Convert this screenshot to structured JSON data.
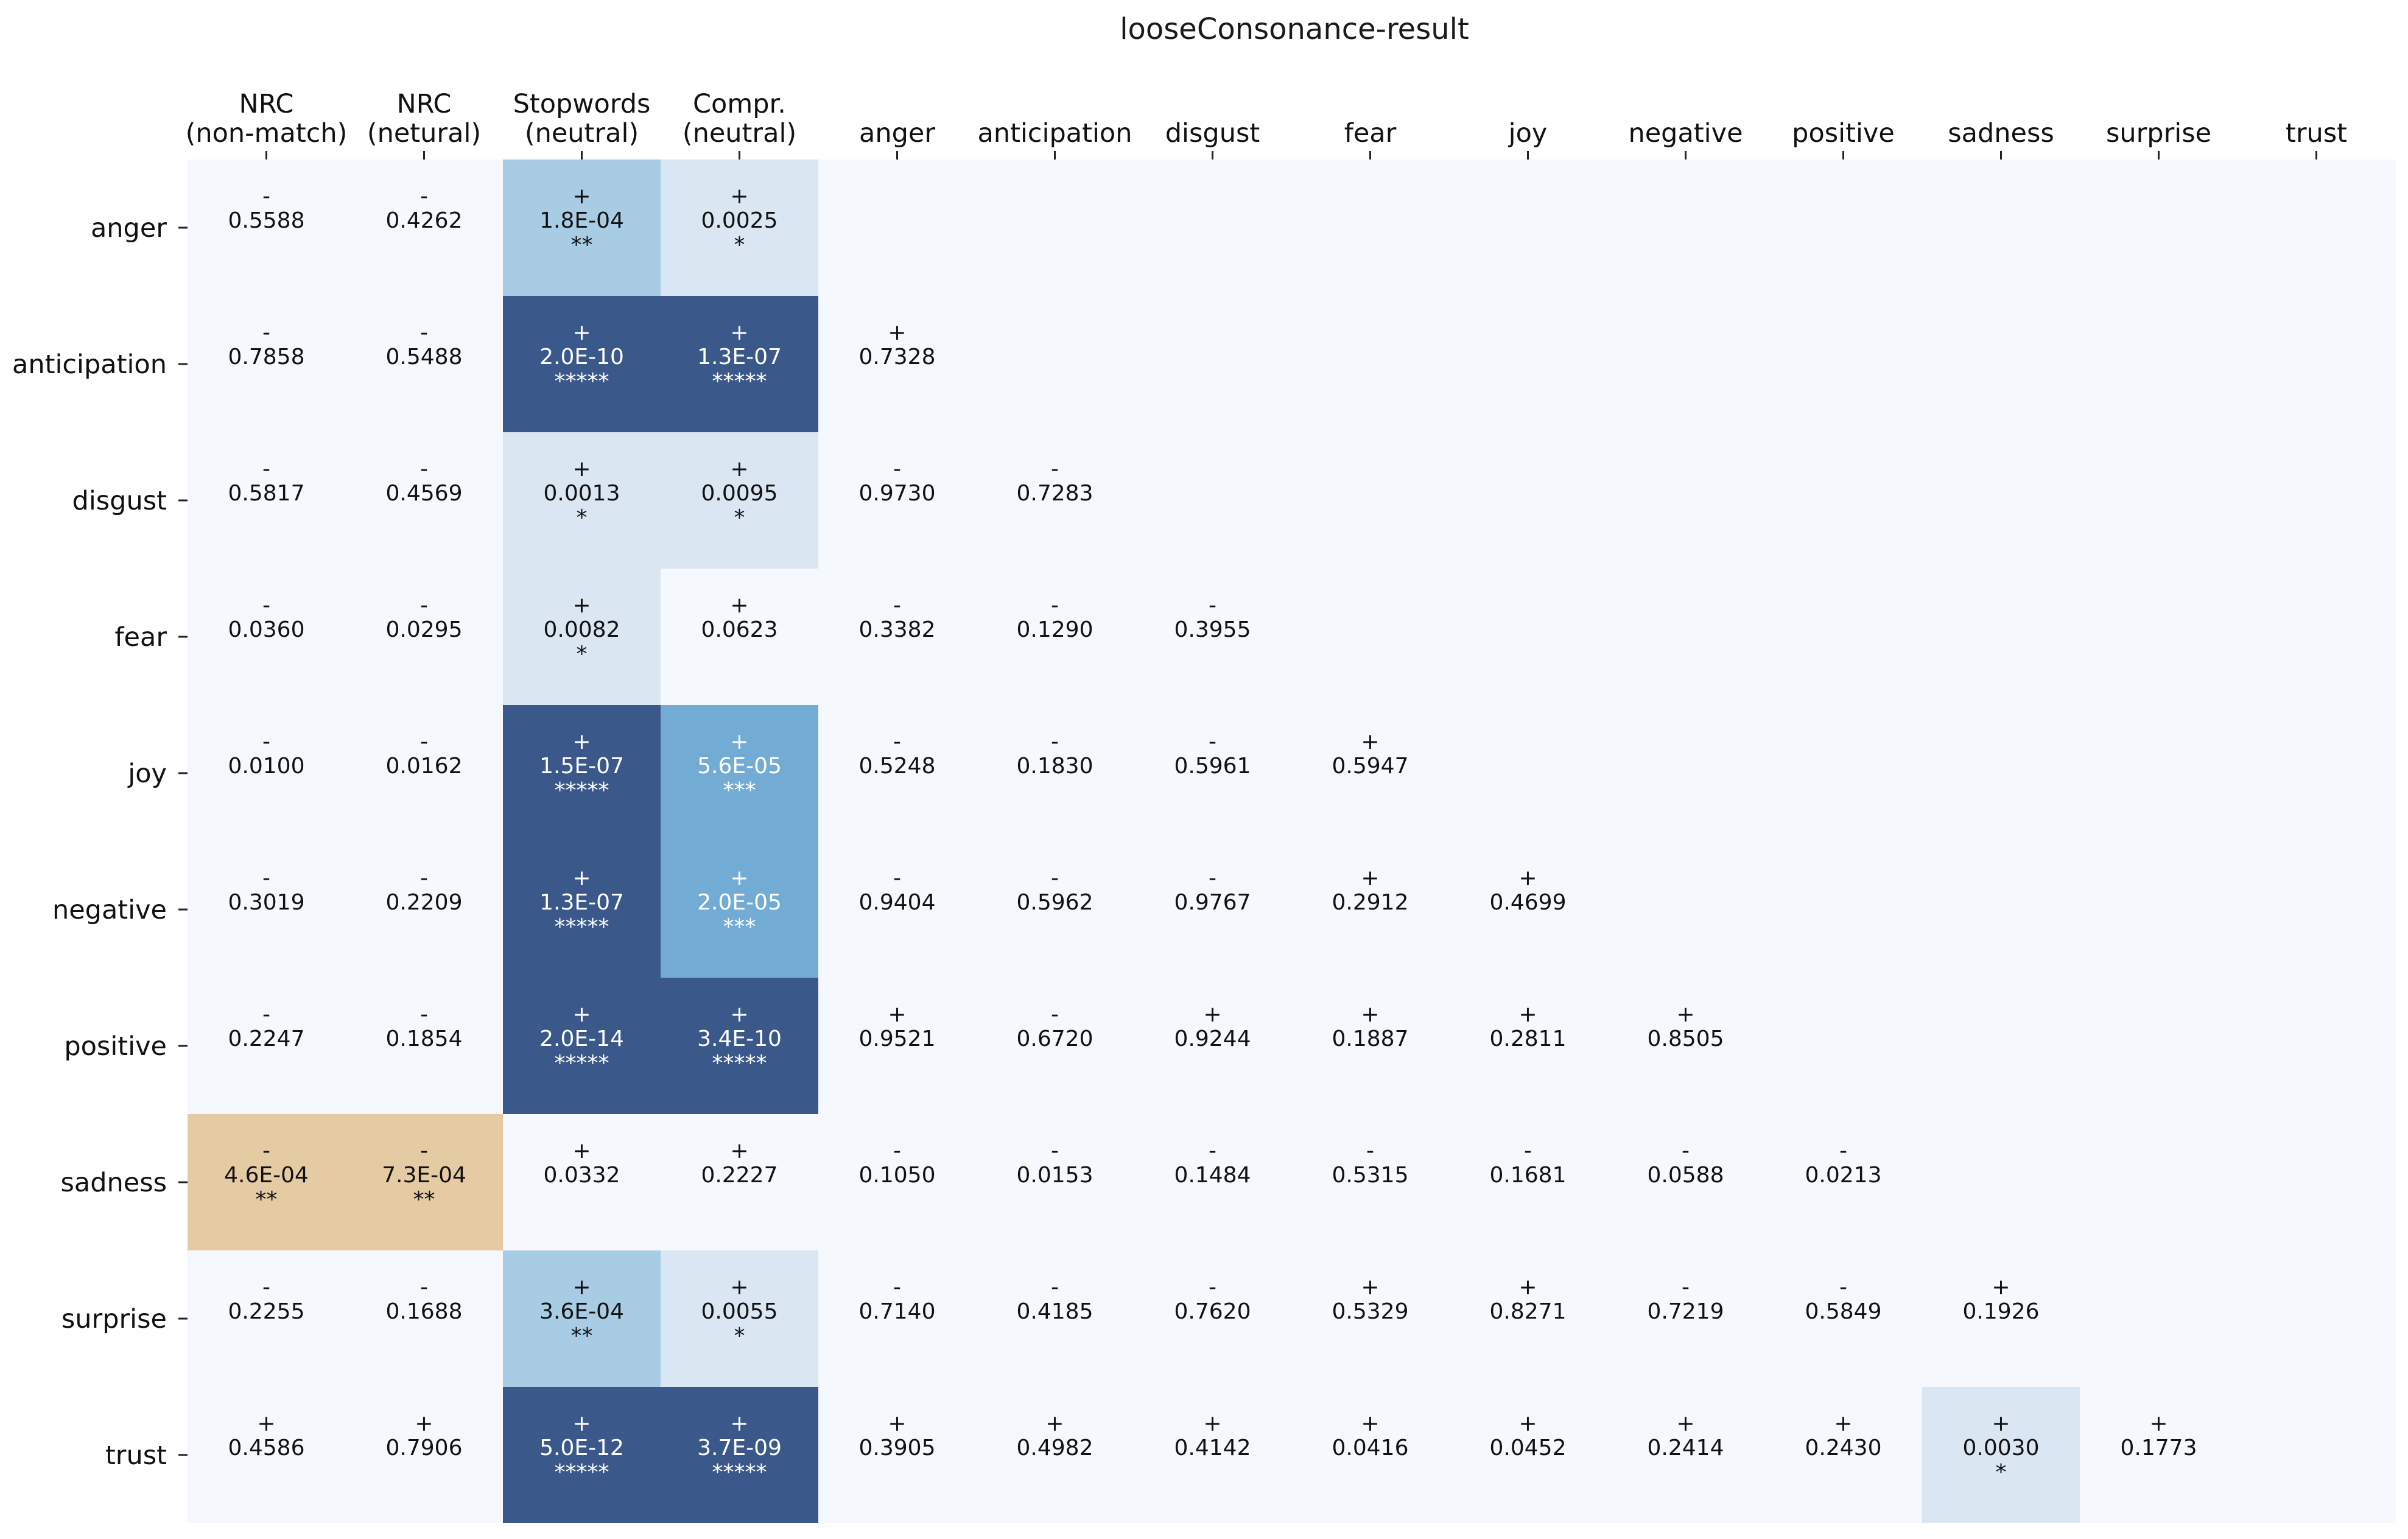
{
  "chart_data": {
    "type": "heatmap",
    "title": "looseConsonance-result",
    "columns": [
      [
        "NRC",
        "(non-match)"
      ],
      [
        "NRC",
        "(netural)"
      ],
      [
        "Stopwords",
        "(neutral)"
      ],
      [
        "Compr.",
        "(neutral)"
      ],
      [
        "anger"
      ],
      [
        "anticipation"
      ],
      [
        "disgust"
      ],
      [
        "fear"
      ],
      [
        "joy"
      ],
      [
        "negative"
      ],
      [
        "positive"
      ],
      [
        "sadness"
      ],
      [
        "surprise"
      ],
      [
        "trust"
      ]
    ],
    "rows": [
      "anger",
      "anticipation",
      "disgust",
      "fear",
      "joy",
      "negative",
      "positive",
      "sadness",
      "surprise",
      "trust"
    ],
    "colors": {
      "background": "#f5f9fe",
      "level1": "#dae7f3",
      "level2": "#a7cce4",
      "level3": "#72acd4",
      "level5": "#3a5889",
      "negative_sig": "#e5cba3",
      "dark_text": "#111111",
      "light_text": "#ffffff"
    },
    "cells": [
      [
        {
          "sign": "-",
          "value": "0.5588",
          "stars": ""
        },
        {
          "sign": "-",
          "value": "0.4262",
          "stars": ""
        },
        {
          "sign": "+",
          "value": "1.8E-04",
          "stars": "**"
        },
        {
          "sign": "+",
          "value": "0.0025",
          "stars": "*"
        },
        null,
        null,
        null,
        null,
        null,
        null,
        null,
        null,
        null,
        null
      ],
      [
        {
          "sign": "-",
          "value": "0.7858",
          "stars": ""
        },
        {
          "sign": "-",
          "value": "0.5488",
          "stars": ""
        },
        {
          "sign": "+",
          "value": "2.0E-10",
          "stars": "*****"
        },
        {
          "sign": "+",
          "value": "1.3E-07",
          "stars": "*****"
        },
        {
          "sign": "+",
          "value": "0.7328",
          "stars": ""
        },
        null,
        null,
        null,
        null,
        null,
        null,
        null,
        null,
        null
      ],
      [
        {
          "sign": "-",
          "value": "0.5817",
          "stars": ""
        },
        {
          "sign": "-",
          "value": "0.4569",
          "stars": ""
        },
        {
          "sign": "+",
          "value": "0.0013",
          "stars": "*"
        },
        {
          "sign": "+",
          "value": "0.0095",
          "stars": "*"
        },
        {
          "sign": "-",
          "value": "0.9730",
          "stars": ""
        },
        {
          "sign": "-",
          "value": "0.7283",
          "stars": ""
        },
        null,
        null,
        null,
        null,
        null,
        null,
        null,
        null
      ],
      [
        {
          "sign": "-",
          "value": "0.0360",
          "stars": ""
        },
        {
          "sign": "-",
          "value": "0.0295",
          "stars": ""
        },
        {
          "sign": "+",
          "value": "0.0082",
          "stars": "*"
        },
        {
          "sign": "+",
          "value": "0.0623",
          "stars": ""
        },
        {
          "sign": "-",
          "value": "0.3382",
          "stars": ""
        },
        {
          "sign": "-",
          "value": "0.1290",
          "stars": ""
        },
        {
          "sign": "-",
          "value": "0.3955",
          "stars": ""
        },
        null,
        null,
        null,
        null,
        null,
        null,
        null
      ],
      [
        {
          "sign": "-",
          "value": "0.0100",
          "stars": ""
        },
        {
          "sign": "-",
          "value": "0.0162",
          "stars": ""
        },
        {
          "sign": "+",
          "value": "1.5E-07",
          "stars": "*****"
        },
        {
          "sign": "+",
          "value": "5.6E-05",
          "stars": "***"
        },
        {
          "sign": "-",
          "value": "0.5248",
          "stars": ""
        },
        {
          "sign": "-",
          "value": "0.1830",
          "stars": ""
        },
        {
          "sign": "-",
          "value": "0.5961",
          "stars": ""
        },
        {
          "sign": "+",
          "value": "0.5947",
          "stars": ""
        },
        null,
        null,
        null,
        null,
        null,
        null
      ],
      [
        {
          "sign": "-",
          "value": "0.3019",
          "stars": ""
        },
        {
          "sign": "-",
          "value": "0.2209",
          "stars": ""
        },
        {
          "sign": "+",
          "value": "1.3E-07",
          "stars": "*****"
        },
        {
          "sign": "+",
          "value": "2.0E-05",
          "stars": "***"
        },
        {
          "sign": "-",
          "value": "0.9404",
          "stars": ""
        },
        {
          "sign": "-",
          "value": "0.5962",
          "stars": ""
        },
        {
          "sign": "-",
          "value": "0.9767",
          "stars": ""
        },
        {
          "sign": "+",
          "value": "0.2912",
          "stars": ""
        },
        {
          "sign": "+",
          "value": "0.4699",
          "stars": ""
        },
        null,
        null,
        null,
        null,
        null
      ],
      [
        {
          "sign": "-",
          "value": "0.2247",
          "stars": ""
        },
        {
          "sign": "-",
          "value": "0.1854",
          "stars": ""
        },
        {
          "sign": "+",
          "value": "2.0E-14",
          "stars": "*****"
        },
        {
          "sign": "+",
          "value": "3.4E-10",
          "stars": "*****"
        },
        {
          "sign": "+",
          "value": "0.9521",
          "stars": ""
        },
        {
          "sign": "-",
          "value": "0.6720",
          "stars": ""
        },
        {
          "sign": "+",
          "value": "0.9244",
          "stars": ""
        },
        {
          "sign": "+",
          "value": "0.1887",
          "stars": ""
        },
        {
          "sign": "+",
          "value": "0.2811",
          "stars": ""
        },
        {
          "sign": "+",
          "value": "0.8505",
          "stars": ""
        },
        null,
        null,
        null,
        null
      ],
      [
        {
          "sign": "-",
          "value": "4.6E-04",
          "stars": "**"
        },
        {
          "sign": "-",
          "value": "7.3E-04",
          "stars": "**"
        },
        {
          "sign": "+",
          "value": "0.0332",
          "stars": ""
        },
        {
          "sign": "+",
          "value": "0.2227",
          "stars": ""
        },
        {
          "sign": "-",
          "value": "0.1050",
          "stars": ""
        },
        {
          "sign": "-",
          "value": "0.0153",
          "stars": ""
        },
        {
          "sign": "-",
          "value": "0.1484",
          "stars": ""
        },
        {
          "sign": "-",
          "value": "0.5315",
          "stars": ""
        },
        {
          "sign": "-",
          "value": "0.1681",
          "stars": ""
        },
        {
          "sign": "-",
          "value": "0.0588",
          "stars": ""
        },
        {
          "sign": "-",
          "value": "0.0213",
          "stars": ""
        },
        null,
        null,
        null
      ],
      [
        {
          "sign": "-",
          "value": "0.2255",
          "stars": ""
        },
        {
          "sign": "-",
          "value": "0.1688",
          "stars": ""
        },
        {
          "sign": "+",
          "value": "3.6E-04",
          "stars": "**"
        },
        {
          "sign": "+",
          "value": "0.0055",
          "stars": "*"
        },
        {
          "sign": "-",
          "value": "0.7140",
          "stars": ""
        },
        {
          "sign": "-",
          "value": "0.4185",
          "stars": ""
        },
        {
          "sign": "-",
          "value": "0.7620",
          "stars": ""
        },
        {
          "sign": "+",
          "value": "0.5329",
          "stars": ""
        },
        {
          "sign": "+",
          "value": "0.8271",
          "stars": ""
        },
        {
          "sign": "-",
          "value": "0.7219",
          "stars": ""
        },
        {
          "sign": "-",
          "value": "0.5849",
          "stars": ""
        },
        {
          "sign": "+",
          "value": "0.1926",
          "stars": ""
        },
        null,
        null
      ],
      [
        {
          "sign": "+",
          "value": "0.4586",
          "stars": ""
        },
        {
          "sign": "+",
          "value": "0.7906",
          "stars": ""
        },
        {
          "sign": "+",
          "value": "5.0E-12",
          "stars": "*****"
        },
        {
          "sign": "+",
          "value": "3.7E-09",
          "stars": "*****"
        },
        {
          "sign": "+",
          "value": "0.3905",
          "stars": ""
        },
        {
          "sign": "+",
          "value": "0.4982",
          "stars": ""
        },
        {
          "sign": "+",
          "value": "0.4142",
          "stars": ""
        },
        {
          "sign": "+",
          "value": "0.0416",
          "stars": ""
        },
        {
          "sign": "+",
          "value": "0.0452",
          "stars": ""
        },
        {
          "sign": "+",
          "value": "0.2414",
          "stars": ""
        },
        {
          "sign": "+",
          "value": "0.2430",
          "stars": ""
        },
        {
          "sign": "+",
          "value": "0.0030",
          "stars": "*"
        },
        {
          "sign": "+",
          "value": "0.1773",
          "stars": ""
        },
        null
      ]
    ]
  }
}
